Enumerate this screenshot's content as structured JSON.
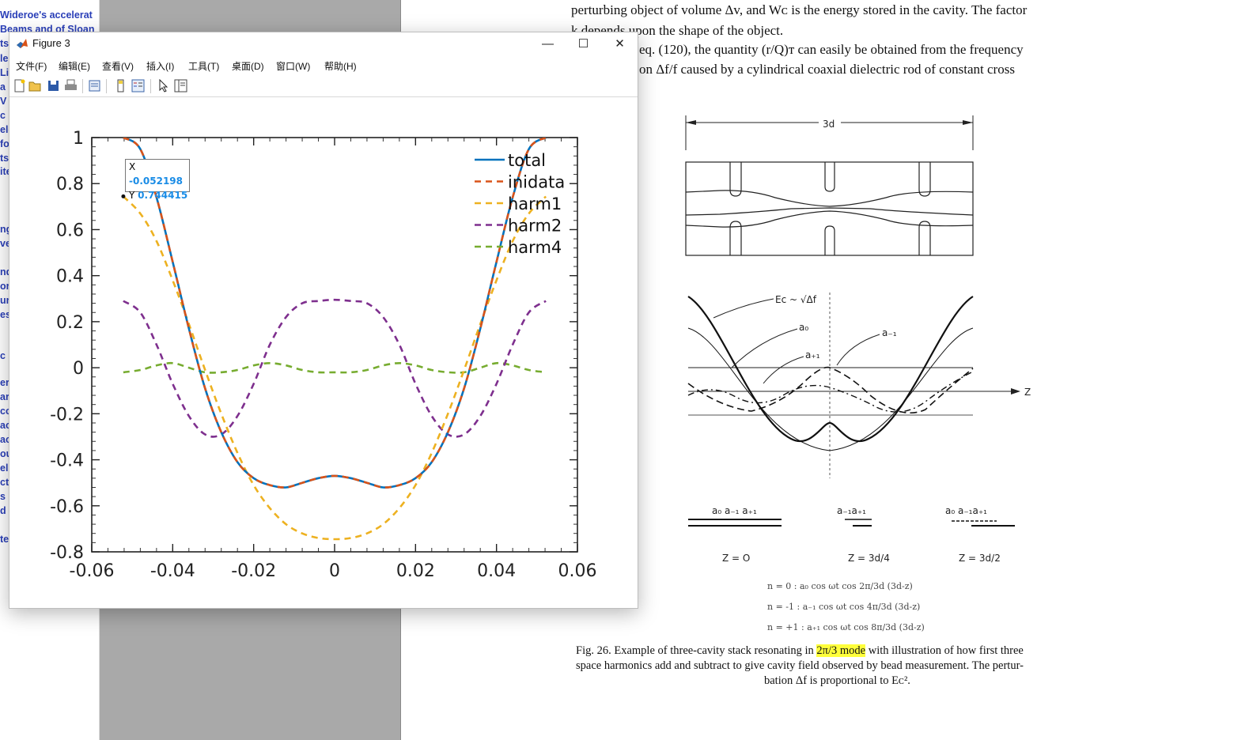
{
  "background": {
    "sidebar_lines": [
      "Wideroe's accelerat",
      "Beams and of Sloan",
      "ts",
      "le",
      "Li",
      "a",
      "V",
      "c",
      "ele",
      "fo",
      "ts",
      "ite",
      "ng",
      "ve",
      "nd",
      "or",
      "ur",
      "es",
      "c",
      "er",
      "ar",
      "cc",
      "ac",
      "ac",
      "ou",
      "el",
      "ct",
      "s",
      "d",
      "te"
    ],
    "doc_lines": [
      "perturbing object of volume Δv, and Wᴄ is the energy stored in the cavity. The factor",
      "k depends upon the shape of the object.",
      "eq. (120), the quantity (r/Q)ᴛ can easily be obtained from the frequency",
      "on Δf/f caused by a cylindrical coaxial dielectric rod of constant cross"
    ],
    "caption_parts": {
      "pre": "Fig. 26.  Example of three-cavity stack resonating in ",
      "highlight": "2π/3 mode",
      "post": " with illustration of how first three",
      "line2": "space harmonics add and subtract to give cavity field observed by bead measurement. The pertur-",
      "line3": "bation Δf is proportional to Eᴄ²."
    },
    "diagram": {
      "dim_label": "3d",
      "ec_label": "Eᴄ ~ √Δf",
      "a0": "a₀",
      "am1": "a₋₁",
      "ap1": "a₊₁",
      "z_axis": "Z",
      "z_labels": [
        "Z = O",
        "Z = 3d/4",
        "Z = 3d/2"
      ],
      "vec_labels": [
        "a₀  a₋₁ a₊₁",
        "a₋₁a₊₁",
        "a₀ a₋₁a₊₁"
      ],
      "equations": [
        "n  =   0  :  a₀  cos ωt  cos 2π/3d (3d-z)",
        "n  =  -1 :  a₋₁ cos ωt  cos 4π/3d (3d-z)",
        "n  =  +1 :  a₊₁ cos ωt  cos 8π/3d (3d-z)"
      ]
    }
  },
  "window": {
    "title": "Figure 3",
    "minimize": "—",
    "maximize": "☐",
    "close": "✕",
    "menu": [
      "文件(F)",
      "编辑(E)",
      "查看(V)",
      "插入(I)",
      "工具(T)",
      "桌面(D)",
      "窗口(W)",
      "帮助(H)"
    ],
    "toolbar_icons": [
      "new-file-icon",
      "open-folder-icon",
      "save-icon",
      "print-icon",
      "print-preview-icon",
      "colorbar-icon",
      "legend-icon",
      "pointer-icon",
      "property-editor-icon"
    ],
    "datatip": {
      "x_label": "X",
      "x_value": "-0.052198",
      "y_label": "Y",
      "y_value": "0.744415"
    }
  },
  "chart_data": {
    "type": "line",
    "title": "",
    "xlabel": "",
    "ylabel": "",
    "xlim": [
      -0.06,
      0.06
    ],
    "ylim": [
      -0.8,
      1
    ],
    "xticks": [
      -0.06,
      -0.04,
      -0.02,
      0,
      0.02,
      0.04,
      0.06
    ],
    "xtick_labels": [
      "-0.06",
      "-0.04",
      "-0.02",
      "0",
      "0.02",
      "0.04",
      "0.06"
    ],
    "yticks": [
      1,
      0.8,
      0.6,
      0.4,
      0.2,
      0,
      -0.2,
      -0.4,
      -0.6,
      -0.8
    ],
    "ytick_labels": [
      "1",
      "0.8",
      "0.6",
      "0.4",
      "0.2",
      "0",
      "-0.2",
      "-0.4",
      "-0.6",
      "-0.8"
    ],
    "grid": false,
    "legend_position": "top-right",
    "x": [
      -0.0522,
      -0.048,
      -0.044,
      -0.04,
      -0.036,
      -0.032,
      -0.028,
      -0.024,
      -0.02,
      -0.016,
      -0.012,
      -0.008,
      -0.004,
      0,
      0.004,
      0.008,
      0.012,
      0.016,
      0.02,
      0.024,
      0.028,
      0.032,
      0.036,
      0.04,
      0.044,
      0.048,
      0.0522
    ],
    "series": [
      {
        "name": "total",
        "color": "#0072bd",
        "dash": "solid",
        "values": [
          1.0,
          0.95,
          0.74,
          0.46,
          0.17,
          -0.09,
          -0.28,
          -0.41,
          -0.48,
          -0.51,
          -0.52,
          -0.5,
          -0.48,
          -0.47,
          -0.48,
          -0.5,
          -0.52,
          -0.51,
          -0.48,
          -0.41,
          -0.28,
          -0.09,
          0.17,
          0.46,
          0.74,
          0.95,
          1.0
        ]
      },
      {
        "name": "inidata",
        "color": "#d95319",
        "dash": "dashed",
        "values": [
          1.0,
          0.95,
          0.74,
          0.46,
          0.17,
          -0.09,
          -0.28,
          -0.41,
          -0.48,
          -0.51,
          -0.52,
          -0.5,
          -0.48,
          -0.47,
          -0.48,
          -0.5,
          -0.52,
          -0.51,
          -0.48,
          -0.41,
          -0.28,
          -0.09,
          0.17,
          0.46,
          0.74,
          0.95,
          1.0
        ]
      },
      {
        "name": "harm1",
        "color": "#edb120",
        "dash": "dashed",
        "values": [
          0.744,
          0.67,
          0.55,
          0.38,
          0.19,
          -0.01,
          -0.2,
          -0.37,
          -0.51,
          -0.61,
          -0.68,
          -0.72,
          -0.74,
          -0.745,
          -0.74,
          -0.72,
          -0.68,
          -0.61,
          -0.51,
          -0.37,
          -0.2,
          -0.01,
          0.19,
          0.38,
          0.55,
          0.67,
          0.744
        ]
      },
      {
        "name": "harm2",
        "color": "#7e2f8e",
        "dash": "dashed",
        "values": [
          0.29,
          0.24,
          0.1,
          -0.07,
          -0.21,
          -0.29,
          -0.29,
          -0.21,
          -0.07,
          0.1,
          0.22,
          0.28,
          0.29,
          0.295,
          0.29,
          0.28,
          0.22,
          0.1,
          -0.07,
          -0.21,
          -0.29,
          -0.29,
          -0.21,
          -0.07,
          0.1,
          0.24,
          0.29
        ]
      },
      {
        "name": "harm4",
        "color": "#77ac30",
        "dash": "dashed",
        "values": [
          -0.02,
          -0.01,
          0.01,
          0.02,
          0.0,
          -0.02,
          -0.02,
          -0.01,
          0.01,
          0.02,
          0.01,
          -0.01,
          -0.02,
          -0.02,
          -0.02,
          -0.01,
          0.01,
          0.02,
          0.01,
          -0.01,
          -0.02,
          -0.02,
          0.0,
          0.02,
          0.01,
          -0.01,
          -0.02
        ]
      }
    ]
  }
}
